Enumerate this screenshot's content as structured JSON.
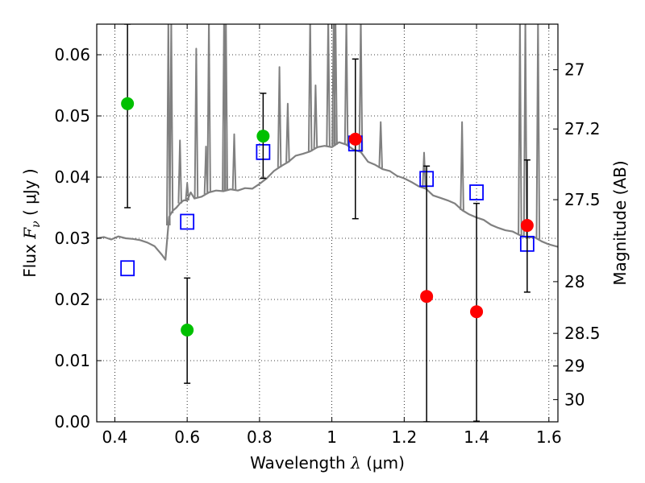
{
  "chart_data": {
    "type": "scatter",
    "xlabel": {
      "prefix": "Wavelength  ",
      "symbol": "λ",
      "suffix": " (μm)"
    },
    "ylabel": {
      "prefix": "Flux  ",
      "symbol": "F",
      "sub": "ν",
      "suffix": "  ( μJy )"
    },
    "y2label": "Magnitude (AB)",
    "xlim": [
      0.35,
      1.625
    ],
    "ylim": [
      0.0,
      0.065
    ],
    "grid": true,
    "x_ticks": [
      {
        "v": 0.4,
        "label": "0.4"
      },
      {
        "v": 0.6,
        "label": "0.6"
      },
      {
        "v": 0.8,
        "label": "0.8"
      },
      {
        "v": 1.0,
        "label": "1"
      },
      {
        "v": 1.2,
        "label": "1.2"
      },
      {
        "v": 1.4,
        "label": "1.4"
      },
      {
        "v": 1.6,
        "label": "1.6"
      }
    ],
    "y_ticks": [
      {
        "v": 0.0,
        "label": "0.00"
      },
      {
        "v": 0.01,
        "label": "0.01"
      },
      {
        "v": 0.02,
        "label": "0.02"
      },
      {
        "v": 0.03,
        "label": "0.03"
      },
      {
        "v": 0.04,
        "label": "0.04"
      },
      {
        "v": 0.05,
        "label": "0.05"
      },
      {
        "v": 0.06,
        "label": "0.06"
      }
    ],
    "y2_ticks": [
      {
        "mag": 27,
        "label": "27"
      },
      {
        "mag": 27.2,
        "label": "27.2"
      },
      {
        "mag": 27.5,
        "label": "27.5"
      },
      {
        "mag": 28,
        "label": "28"
      },
      {
        "mag": 28.5,
        "label": "28.5"
      },
      {
        "mag": 29,
        "label": "29"
      },
      {
        "mag": 30,
        "label": "30"
      }
    ],
    "colors": {
      "model": "#808080",
      "green": "#00c000",
      "red": "#ff0000",
      "model_points": "#0000ff",
      "errorbar": "#000000"
    },
    "series": [
      {
        "kind": "spectrum",
        "x": [
          0.35,
          0.37,
          0.39,
          0.41,
          0.43,
          0.45,
          0.47,
          0.49,
          0.51,
          0.53,
          0.54,
          0.55,
          0.56,
          0.57,
          0.58,
          0.59,
          0.6,
          0.61,
          0.62,
          0.64,
          0.66,
          0.68,
          0.7,
          0.72,
          0.74,
          0.76,
          0.78,
          0.8,
          0.82,
          0.84,
          0.86,
          0.88,
          0.9,
          0.92,
          0.94,
          0.96,
          0.98,
          1.0,
          1.02,
          1.04,
          1.06,
          1.08,
          1.1,
          1.12,
          1.14,
          1.16,
          1.18,
          1.2,
          1.22,
          1.24,
          1.26,
          1.28,
          1.3,
          1.32,
          1.34,
          1.36,
          1.38,
          1.4,
          1.42,
          1.44,
          1.46,
          1.48,
          1.5,
          1.52,
          1.54,
          1.56,
          1.58,
          1.6,
          1.625
        ],
        "y": [
          0.03,
          0.0302,
          0.0298,
          0.0303,
          0.03,
          0.0299,
          0.0297,
          0.0293,
          0.0287,
          0.0273,
          0.0265,
          0.0335,
          0.0345,
          0.035,
          0.0357,
          0.0362,
          0.0362,
          0.0375,
          0.0365,
          0.0368,
          0.0375,
          0.0378,
          0.0377,
          0.038,
          0.0378,
          0.0382,
          0.0381,
          0.0389,
          0.0398,
          0.041,
          0.0418,
          0.0425,
          0.0435,
          0.0438,
          0.0442,
          0.0449,
          0.0451,
          0.0449,
          0.0457,
          0.0453,
          0.0445,
          0.0441,
          0.0425,
          0.042,
          0.0413,
          0.041,
          0.0402,
          0.0398,
          0.0392,
          0.0385,
          0.0381,
          0.037,
          0.0366,
          0.0362,
          0.0357,
          0.0346,
          0.0339,
          0.0334,
          0.033,
          0.0322,
          0.0317,
          0.0313,
          0.0311,
          0.0305,
          0.0301,
          0.0302,
          0.0295,
          0.029,
          0.0286
        ]
      },
      {
        "kind": "spikes",
        "x": [
          0.548,
          0.556,
          0.58,
          0.6,
          0.625,
          0.652,
          0.66,
          0.702,
          0.707,
          0.73,
          0.855,
          0.878,
          0.94,
          0.955,
          0.99,
          1.005,
          1.01,
          1.04,
          1.08,
          1.135,
          1.255,
          1.36,
          1.52,
          1.535,
          1.57
        ],
        "y": [
          0.066,
          0.066,
          0.046,
          0.039,
          0.061,
          0.045,
          0.066,
          0.066,
          0.066,
          0.047,
          0.058,
          0.052,
          0.066,
          0.055,
          0.066,
          0.066,
          0.066,
          0.066,
          0.066,
          0.049,
          0.044,
          0.049,
          0.066,
          0.066,
          0.066
        ]
      },
      {
        "kind": "model_points",
        "x": [
          0.435,
          0.6,
          0.81,
          1.065,
          1.262,
          1.4,
          1.54
        ],
        "y": [
          0.0251,
          0.0327,
          0.0441,
          0.0455,
          0.0397,
          0.0375,
          0.0291
        ]
      },
      {
        "kind": "detections",
        "color_key": "green",
        "x": [
          0.435,
          0.6,
          0.81
        ],
        "y": [
          0.052,
          0.015,
          0.0467
        ],
        "err_low": [
          0.035,
          0.0063,
          0.0398
        ],
        "err_high": [
          0.065,
          0.0235,
          0.0537
        ]
      },
      {
        "kind": "detections",
        "color_key": "red",
        "x": [
          1.065,
          1.262,
          1.4,
          1.54
        ],
        "y": [
          0.0462,
          0.0205,
          0.018,
          0.0321
        ],
        "err_low": [
          0.0332,
          0.0,
          0.0001,
          0.0212
        ],
        "err_high": [
          0.0593,
          0.0418,
          0.0357,
          0.0428
        ]
      }
    ]
  }
}
